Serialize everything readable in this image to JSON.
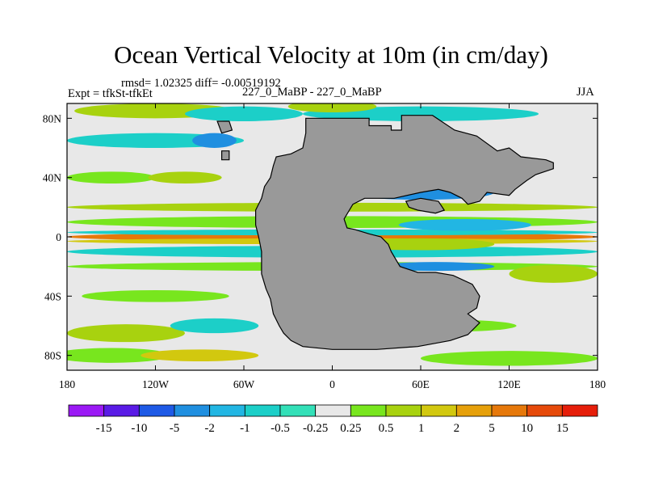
{
  "chart_data": {
    "type": "heatmap",
    "title": "Ocean Vertical Velocity at 10m (in cm/day)",
    "left_string": "Expt = tfkSt-tfkEt",
    "stats_string": "rmsd= 1.02325 diff= -0.00519192",
    "center_string": "227_0_MaBP - 227_0_MaBP",
    "right_string": "JJA",
    "x_ticks": [
      "180",
      "120W",
      "60W",
      "0",
      "60E",
      "120E",
      "180"
    ],
    "x_tick_values": [
      -180,
      -120,
      -60,
      0,
      60,
      120,
      180
    ],
    "y_ticks": [
      "80N",
      "40N",
      "0",
      "40S",
      "80S"
    ],
    "y_tick_values": [
      80,
      40,
      0,
      -40,
      -80
    ],
    "xlim": [
      -180,
      180
    ],
    "ylim": [
      -90,
      90
    ],
    "colorbar": {
      "levels": [
        "-15",
        "-10",
        "-5",
        "-2",
        "-1",
        "-0.5",
        "-0.25",
        "0.25",
        "0.5",
        "1",
        "2",
        "5",
        "10",
        "15"
      ],
      "colors": [
        "#9b19f5",
        "#5a1be6",
        "#1e5ae6",
        "#1f8fe0",
        "#22b6e3",
        "#1ccfc8",
        "#33e0b8",
        "#e8e8e8",
        "#78e61e",
        "#a8d20f",
        "#d2c80f",
        "#e6a00a",
        "#e6780a",
        "#e64a0a",
        "#e61e0a"
      ]
    },
    "land_color": "#999999"
  }
}
